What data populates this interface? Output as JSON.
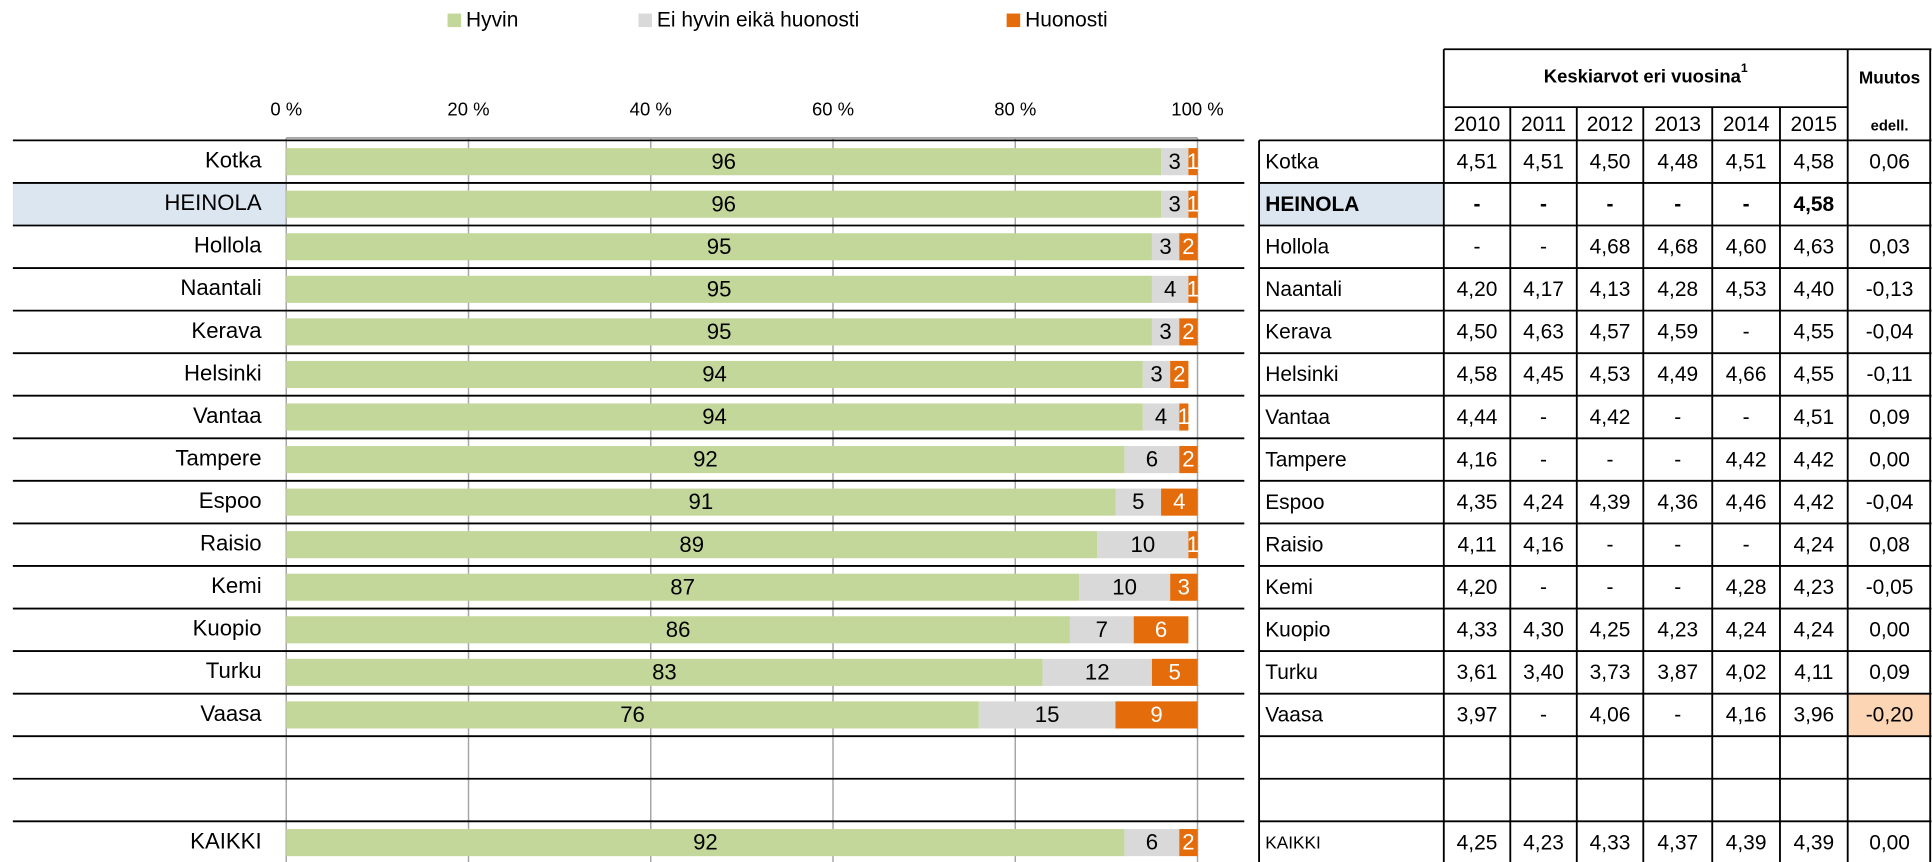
{
  "chart_data": {
    "type": "bar",
    "orientation": "horizontal",
    "stacked": true,
    "categories": [
      "Kotka",
      "HEINOLA",
      "Hollola",
      "Naantali",
      "Kerava",
      "Helsinki",
      "Vantaa",
      "Tampere",
      "Espoo",
      "Raisio",
      "Kemi",
      "Kuopio",
      "Turku",
      "Vaasa",
      null,
      null,
      "KAIKKI"
    ],
    "highlight_category": 1,
    "series": [
      {
        "name": "Hyvin",
        "color": "#c4d79b",
        "label_color": "#000000",
        "values": [
          96,
          96,
          95,
          95,
          95,
          94,
          94,
          92,
          91,
          89,
          87,
          86,
          83,
          76,
          null,
          null,
          92
        ]
      },
      {
        "name": "Ei hyvin eikä huonosti",
        "color": "#d9d9d9",
        "label_color": "#000000",
        "values": [
          3,
          3,
          3,
          4,
          3,
          3,
          4,
          6,
          5,
          10,
          10,
          7,
          12,
          15,
          null,
          null,
          6
        ]
      },
      {
        "name": "Huonosti",
        "color": "#e46c0a",
        "label_color": "#ffffff",
        "values": [
          1,
          1,
          2,
          1,
          2,
          2,
          1,
          2,
          4,
          1,
          3,
          6,
          5,
          9,
          null,
          null,
          2
        ]
      }
    ],
    "xlim": [
      0,
      100
    ],
    "xticks": [
      {
        "value": 0,
        "label": "0 %"
      },
      {
        "value": 20,
        "label": "20 %"
      },
      {
        "value": 40,
        "label": "40 %"
      },
      {
        "value": 60,
        "label": "60 %"
      },
      {
        "value": 80,
        "label": "80 %"
      },
      {
        "value": 100,
        "label": "100 %"
      }
    ],
    "grid": true,
    "legend": "top"
  },
  "table": {
    "title": "Keskiarvot eri vuosina",
    "title_note": "1",
    "change_header": "Muutos",
    "change_subheader": "edell.",
    "columns": [
      "2010",
      "2011",
      "2012",
      "2013",
      "2014",
      "2015"
    ],
    "rows": [
      {
        "name": "Kotka",
        "values": [
          "4,51",
          "4,51",
          "4,50",
          "4,48",
          "4,51",
          "4,58"
        ],
        "change": "0,06"
      },
      {
        "name": "HEINOLA",
        "values": [
          "-",
          "-",
          "-",
          "-",
          "-",
          "4,58"
        ],
        "change": null,
        "highlight": true
      },
      {
        "name": "Hollola",
        "values": [
          "-",
          "-",
          "4,68",
          "4,68",
          "4,60",
          "4,63"
        ],
        "change": "0,03"
      },
      {
        "name": "Naantali",
        "values": [
          "4,20",
          "4,17",
          "4,13",
          "4,28",
          "4,53",
          "4,40"
        ],
        "change": "-0,13"
      },
      {
        "name": "Kerava",
        "values": [
          "4,50",
          "4,63",
          "4,57",
          "4,59",
          "-",
          "4,55"
        ],
        "change": "-0,04"
      },
      {
        "name": "Helsinki",
        "values": [
          "4,58",
          "4,45",
          "4,53",
          "4,49",
          "4,66",
          "4,55"
        ],
        "change": "-0,11"
      },
      {
        "name": "Vantaa",
        "values": [
          "4,44",
          "-",
          "4,42",
          "-",
          "-",
          "4,51"
        ],
        "change": "0,09"
      },
      {
        "name": "Tampere",
        "values": [
          "4,16",
          "-",
          "-",
          "-",
          "4,42",
          "4,42"
        ],
        "change": "0,00"
      },
      {
        "name": "Espoo",
        "values": [
          "4,35",
          "4,24",
          "4,39",
          "4,36",
          "4,46",
          "4,42"
        ],
        "change": "-0,04"
      },
      {
        "name": "Raisio",
        "values": [
          "4,11",
          "4,16",
          "-",
          "-",
          "-",
          "4,24"
        ],
        "change": "0,08"
      },
      {
        "name": "Kemi",
        "values": [
          "4,20",
          "-",
          "-",
          "-",
          "4,28",
          "4,23"
        ],
        "change": "-0,05"
      },
      {
        "name": "Kuopio",
        "values": [
          "4,33",
          "4,30",
          "4,25",
          "4,23",
          "4,24",
          "4,24"
        ],
        "change": "0,00"
      },
      {
        "name": "Turku",
        "values": [
          "3,61",
          "3,40",
          "3,73",
          "3,87",
          "4,02",
          "4,11"
        ],
        "change": "0,09"
      },
      {
        "name": "Vaasa",
        "values": [
          "3,97",
          "-",
          "4,06",
          "-",
          "4,16",
          "3,96"
        ],
        "change": "-0,20",
        "change_highlight": true
      },
      {
        "name": null,
        "values": [
          null,
          null,
          null,
          null,
          null,
          null
        ],
        "change": null
      },
      {
        "name": null,
        "values": [
          null,
          null,
          null,
          null,
          null,
          null
        ],
        "change": null
      },
      {
        "name": "KAIKKI",
        "values": [
          "4,25",
          "4,23",
          "4,33",
          "4,37",
          "4,39",
          "4,39"
        ],
        "change": "0,00",
        "small_name": true
      }
    ]
  }
}
